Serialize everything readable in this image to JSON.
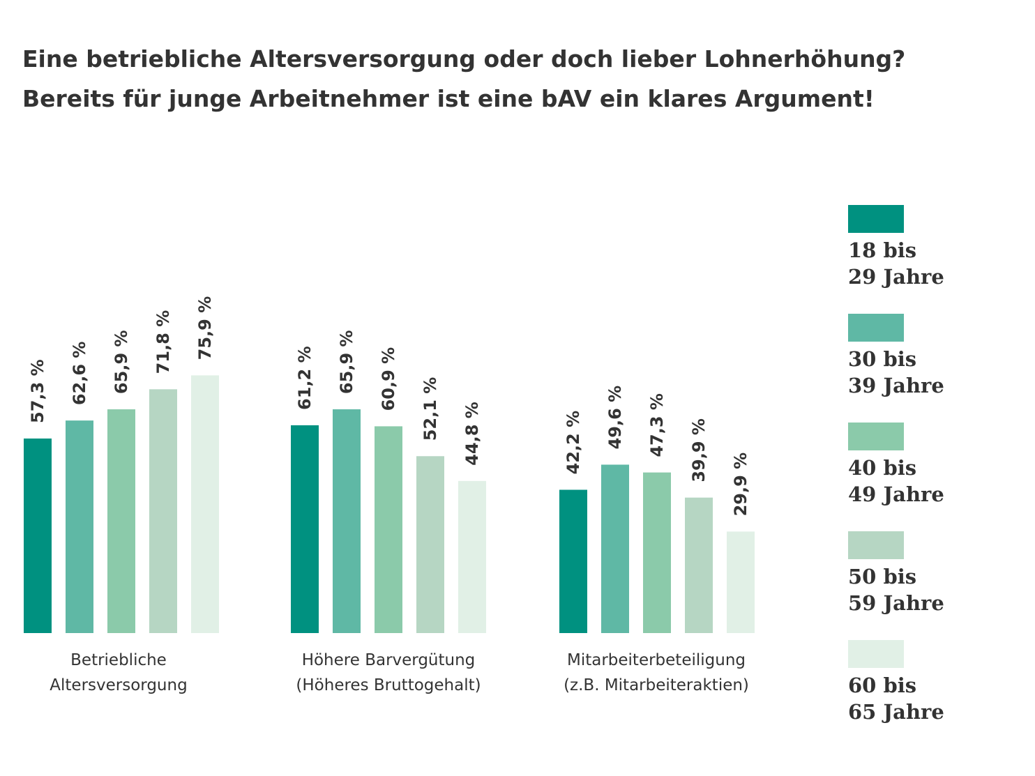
{
  "header": {
    "title_line1": "Eine betriebliche Altersversorgung oder doch lieber Lohnerhöhung?",
    "title_line2": "Bereits für junge Arbeitnehmer ist eine bAV ein klares Argument!"
  },
  "chart_data": {
    "type": "bar",
    "title": "Eine betriebliche Altersversorgung oder doch lieber Lohnerhöhung? Bereits für junge Arbeitnehmer ist eine bAV ein klares Argument!",
    "xlabel": "",
    "ylabel": "",
    "ylim": [
      0,
      100
    ],
    "grid": false,
    "legend_position": "right",
    "value_suffix": " %",
    "categories": [
      [
        "Betriebliche",
        "Altersversorgung"
      ],
      [
        "Höhere Barvergütung",
        "(Höheres Bruttogehalt)"
      ],
      [
        "Mitarbeiterbeteiligung",
        "(z.B. Mitarbeiteraktien)"
      ]
    ],
    "series": [
      {
        "name": "18 bis 29 Jahre",
        "name_lines": [
          "18 bis",
          "29 Jahre"
        ],
        "color": "#009180",
        "values": [
          57.3,
          61.2,
          42.2
        ]
      },
      {
        "name": "30 bis 39 Jahre",
        "name_lines": [
          "30 bis",
          "39 Jahre"
        ],
        "color": "#5fb8a5",
        "values": [
          62.6,
          65.9,
          49.6
        ]
      },
      {
        "name": "40 bis 49 Jahre",
        "name_lines": [
          "40 bis",
          "49 Jahre"
        ],
        "color": "#8bcaaa",
        "values": [
          65.9,
          60.9,
          47.3
        ]
      },
      {
        "name": "50 bis 59 Jahre",
        "name_lines": [
          "50 bis",
          "59 Jahre"
        ],
        "color": "#b6d6c3",
        "values": [
          71.8,
          52.1,
          39.9
        ]
      },
      {
        "name": "60 bis 65 Jahre",
        "name_lines": [
          "60 bis",
          "65 Jahre"
        ],
        "color": "#e1f0e6",
        "values": [
          75.9,
          44.8,
          29.9
        ]
      }
    ]
  }
}
